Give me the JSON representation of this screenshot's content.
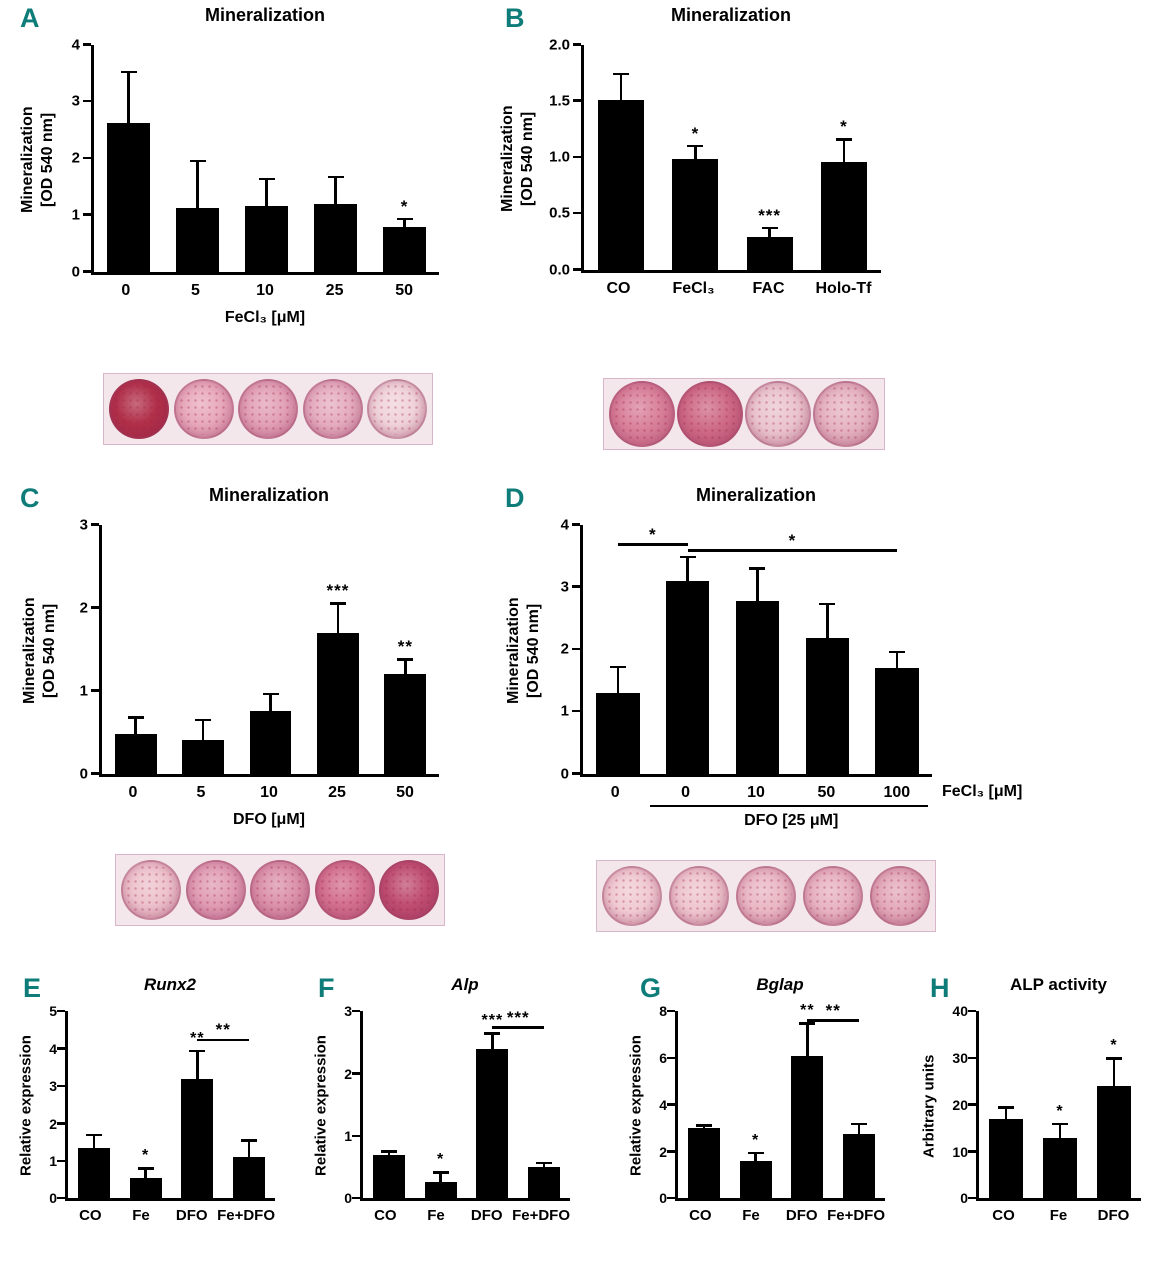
{
  "figure": {
    "accent_color": "#0e7c78",
    "bar_color": "#000000",
    "description": "Eight-panel bar chart figure with alizarin red well images under panels A-D"
  },
  "chart_data": [
    {
      "panel": "A",
      "type": "bar",
      "title": "Mineralization",
      "ylabel": "Mineralization\n[OD 540 nm]",
      "xlabel": "FeCl₃ [μM]",
      "categories": [
        "0",
        "5",
        "10",
        "25",
        "50"
      ],
      "values": [
        2.62,
        1.12,
        1.15,
        1.2,
        0.78
      ],
      "errors": [
        0.9,
        0.83,
        0.49,
        0.47,
        0.15
      ],
      "sig": [
        "",
        "",
        "",
        "",
        "*"
      ],
      "ylim": [
        0,
        4
      ],
      "yticks": [
        0,
        1,
        2,
        3,
        4
      ],
      "ytick_labels": [
        "0",
        "1",
        "2",
        "3",
        "4"
      ]
    },
    {
      "panel": "B",
      "type": "bar",
      "title": "Mineralization",
      "ylabel": "Mineralization\n[OD 540 nm]",
      "xlabel": "",
      "categories": [
        "CO",
        "FeCl₃",
        "FAC",
        "Holo-Tf"
      ],
      "values": [
        1.51,
        0.98,
        0.29,
        0.96
      ],
      "errors": [
        0.23,
        0.12,
        0.08,
        0.2
      ],
      "sig": [
        "",
        "*",
        "***",
        "*"
      ],
      "ylim": [
        0,
        2
      ],
      "yticks": [
        0,
        0.5,
        1,
        1.5,
        2
      ],
      "ytick_labels": [
        "0.0",
        "0.5",
        "1.0",
        "1.5",
        "2.0"
      ]
    },
    {
      "panel": "C",
      "type": "bar",
      "title": "Mineralization",
      "ylabel": "Mineralization\n[OD 540 nm]",
      "xlabel": "DFO [μM]",
      "categories": [
        "0",
        "5",
        "10",
        "25",
        "50"
      ],
      "values": [
        0.48,
        0.4,
        0.75,
        1.7,
        1.2
      ],
      "errors": [
        0.2,
        0.25,
        0.21,
        0.35,
        0.18
      ],
      "sig": [
        "",
        "",
        "",
        "***",
        "**"
      ],
      "ylim": [
        0,
        3
      ],
      "yticks": [
        0,
        1,
        2,
        3
      ],
      "ytick_labels": [
        "0",
        "1",
        "2",
        "3"
      ]
    },
    {
      "panel": "D",
      "type": "bar",
      "title": "Mineralization",
      "ylabel": "Mineralization\n[OD 540 nm]",
      "xlabel": "",
      "xlabel_right": "FeCl₃ [μM]",
      "x_bracket": {
        "from": 1,
        "to": 4,
        "label": "DFO [25 μM]"
      },
      "categories": [
        "0",
        "0",
        "10",
        "50",
        "100"
      ],
      "values": [
        1.3,
        3.1,
        2.78,
        2.18,
        1.7
      ],
      "errors": [
        0.42,
        0.38,
        0.52,
        0.55,
        0.26
      ],
      "sig": [
        "",
        "",
        "",
        "",
        ""
      ],
      "brackets": [
        {
          "from": 0,
          "to": 1,
          "y": 3.66,
          "label": "*"
        },
        {
          "from": 1,
          "to": 4,
          "y": 3.56,
          "label": "*"
        }
      ],
      "ylim": [
        0,
        4
      ],
      "yticks": [
        0,
        1,
        2,
        3,
        4
      ],
      "ytick_labels": [
        "0",
        "1",
        "2",
        "3",
        "4"
      ]
    },
    {
      "panel": "E",
      "type": "bar",
      "title": "Runx2",
      "title_italic": true,
      "ylabel": "Relative expression",
      "xlabel": "",
      "categories": [
        "CO",
        "Fe",
        "DFO",
        "Fe+DFO"
      ],
      "values": [
        1.35,
        0.55,
        3.2,
        1.1
      ],
      "errors": [
        0.35,
        0.25,
        0.75,
        0.45
      ],
      "sig": [
        "",
        "*",
        "**",
        ""
      ],
      "brackets": [
        {
          "from": 2,
          "to": 3,
          "y": 4.2,
          "label": "**"
        }
      ],
      "ylim": [
        0,
        5
      ],
      "yticks": [
        0,
        1,
        2,
        3,
        4,
        5
      ],
      "ytick_labels": [
        "0",
        "1",
        "2",
        "3",
        "4",
        "5"
      ]
    },
    {
      "panel": "F",
      "type": "bar",
      "title": "Alp",
      "title_italic": true,
      "ylabel": "Relative expression",
      "xlabel": "",
      "categories": [
        "CO",
        "Fe",
        "DFO",
        "Fe+DFO"
      ],
      "values": [
        0.7,
        0.27,
        2.4,
        0.5
      ],
      "errors": [
        0.06,
        0.15,
        0.25,
        0.07
      ],
      "sig": [
        "",
        "*",
        "***",
        ""
      ],
      "brackets": [
        {
          "from": 2,
          "to": 3,
          "y": 2.72,
          "label": "***"
        }
      ],
      "ylim": [
        0,
        3
      ],
      "yticks": [
        0,
        1,
        2,
        3
      ],
      "ytick_labels": [
        "0",
        "1",
        "2",
        "3"
      ]
    },
    {
      "panel": "G",
      "type": "bar",
      "title": "Bglap",
      "title_italic": true,
      "ylabel": "Relative expression",
      "xlabel": "",
      "categories": [
        "CO",
        "Fe",
        "DFO",
        "Fe+DFO"
      ],
      "values": [
        3.0,
        1.6,
        6.1,
        2.75
      ],
      "errors": [
        0.12,
        0.35,
        1.4,
        0.45
      ],
      "sig": [
        "",
        "*",
        "**",
        ""
      ],
      "brackets": [
        {
          "from": 2,
          "to": 3,
          "y": 7.55,
          "label": "**"
        }
      ],
      "ylim": [
        0,
        8
      ],
      "yticks": [
        0,
        2,
        4,
        6,
        8
      ],
      "ytick_labels": [
        "0",
        "2",
        "4",
        "6",
        "8"
      ]
    },
    {
      "panel": "H",
      "type": "bar",
      "title": "ALP activity",
      "ylabel": "Arbitrary units",
      "xlabel": "",
      "categories": [
        "CO",
        "Fe",
        "DFO"
      ],
      "values": [
        17,
        13,
        24
      ],
      "errors": [
        2.5,
        3,
        6
      ],
      "sig": [
        "",
        "*",
        "*"
      ],
      "ylim": [
        0,
        40
      ],
      "yticks": [
        0,
        10,
        20,
        30,
        40
      ],
      "ytick_labels": [
        "0",
        "10",
        "20",
        "30",
        "40"
      ]
    }
  ],
  "well_images": [
    {
      "panel": "A",
      "description": "alizarin-red-stained-wells",
      "colors": [
        "#b13049",
        "#e8a9bc",
        "#e2a1b6",
        "#e5adbf",
        "#f0d3da"
      ]
    },
    {
      "panel": "B",
      "description": "alizarin-red-stained-wells",
      "colors": [
        "#d87f99",
        "#ce6a86",
        "#eac4ce",
        "#e5b3c1"
      ]
    },
    {
      "panel": "C",
      "description": "alizarin-red-stained-wells",
      "colors": [
        "#edc2cc",
        "#e09db4",
        "#db92aa",
        "#d3708f",
        "#bf4e72"
      ]
    },
    {
      "panel": "D",
      "description": "alizarin-red-stained-wells",
      "colors": [
        "#f0cad2",
        "#eec5ce",
        "#e9b7c4",
        "#e7b2c1",
        "#e3aaba"
      ]
    }
  ]
}
